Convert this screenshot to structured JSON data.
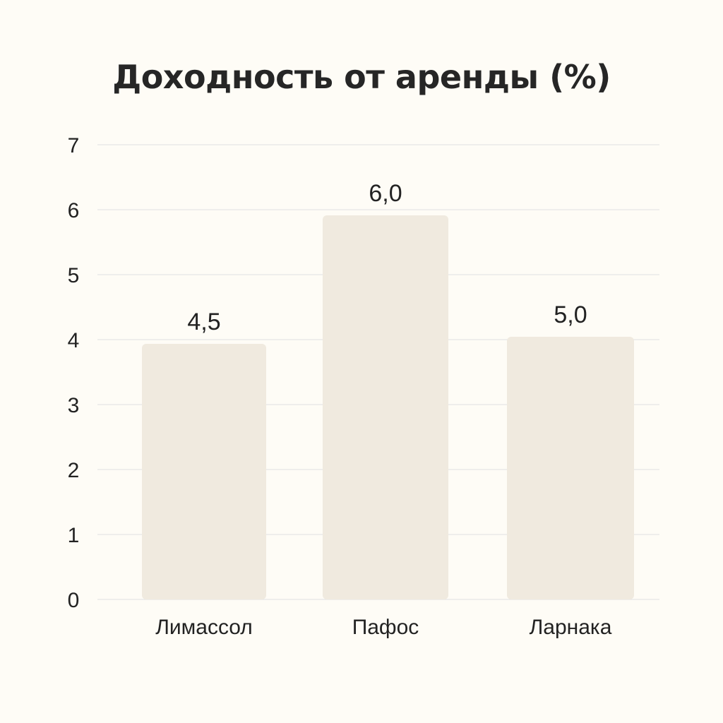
{
  "chart_data": {
    "type": "bar",
    "title": "Доходность от аренды (%)",
    "xlabel": "",
    "ylabel": "",
    "categories": [
      "Лимассол",
      "Пафос",
      "Ларнака"
    ],
    "values": [
      4.5,
      6.0,
      5.0
    ],
    "value_labels": [
      "4,5",
      "6,0",
      "5,0"
    ],
    "ylim": [
      0,
      7
    ],
    "yticks": [
      0,
      1,
      2,
      3,
      4,
      5,
      6,
      7
    ],
    "grid": true,
    "legend": "none",
    "colors": {
      "bar": "#f0eadf",
      "grid": "#e6e6e6",
      "background": "#fefcf6",
      "text": "#222222"
    }
  }
}
